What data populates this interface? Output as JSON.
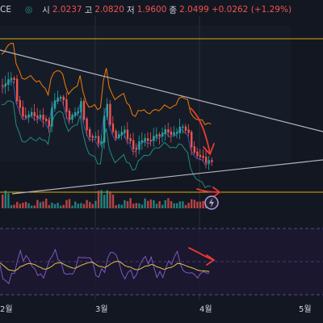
{
  "header": {
    "symbol_fragment": "CE",
    "eye_icon": "eye-icon",
    "open_label": "시",
    "open_value": "2.0237",
    "high_label": "고",
    "high_value": "2.0820",
    "low_label": "저",
    "low_value": "1.9600",
    "close_label": "종",
    "close_value": "2.0499",
    "change": "+0.0262 (+1.29%)"
  },
  "colors": {
    "background": "#131722",
    "up": "#26a69a",
    "down": "#ef5350",
    "text": "#d1d4dc",
    "horizontal_line": "#e0a800",
    "upper_band": "#f57c00",
    "rsi_line": "#7e57c2",
    "rsi_ma": "#e0c050",
    "annotation": "#e53935",
    "trendline": "#b2b5be"
  },
  "chart_data": [
    {
      "type": "candlestick",
      "indicators": [
        "bollinger_bands",
        "moving_average"
      ],
      "annotations": [
        "symmetrical-triangle-trendlines",
        "horizontal-level",
        "red-down-arrows"
      ],
      "x_tick_labels": [
        "2월",
        "3월",
        "4월",
        "5월"
      ],
      "last_close": 2.0499
    },
    {
      "type": "bar",
      "series": [
        "volume"
      ]
    },
    {
      "type": "line",
      "series": [
        "rsi",
        "rsi_ma"
      ],
      "y_range": [
        0,
        100
      ]
    }
  ]
}
